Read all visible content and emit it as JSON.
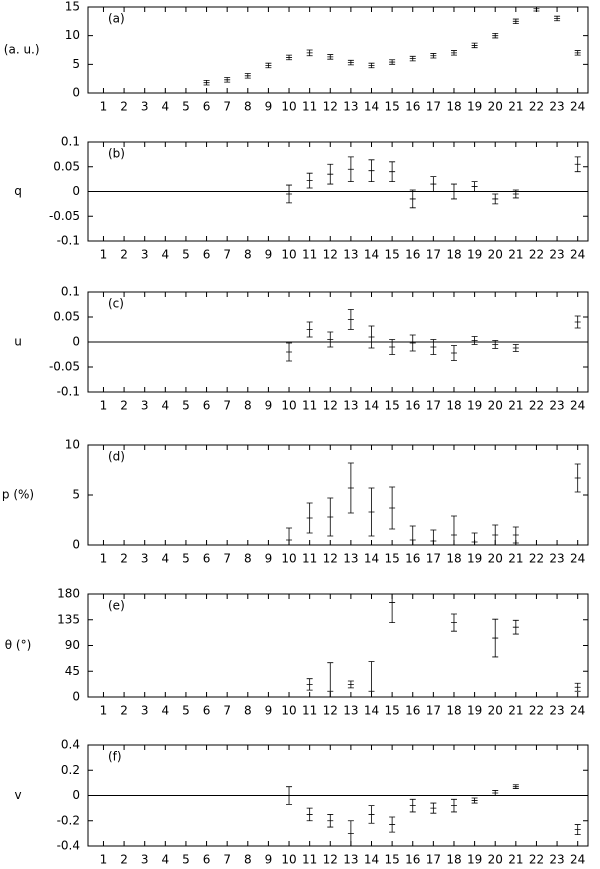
{
  "chart_data": [
    {
      "type": "errorbar",
      "y_label": "I (a. u.)",
      "annotation": "(a)",
      "x": [
        6,
        7,
        8,
        9,
        10,
        11,
        12,
        13,
        14,
        15,
        16,
        17,
        18,
        19,
        20,
        21,
        22,
        23,
        24
      ],
      "values": [
        1.8,
        2.3,
        3.0,
        4.8,
        6.2,
        7.0,
        6.3,
        5.3,
        4.8,
        5.4,
        6.0,
        6.5,
        7.0,
        8.3,
        10.0,
        12.5,
        14.7,
        13.0,
        7.0
      ],
      "errors": [
        0.4,
        0.4,
        0.4,
        0.4,
        0.4,
        0.5,
        0.4,
        0.4,
        0.4,
        0.4,
        0.4,
        0.4,
        0.4,
        0.4,
        0.4,
        0.4,
        0.4,
        0.4,
        0.4
      ],
      "xlim": [
        0.25,
        24.5
      ],
      "xticks": [
        1,
        2,
        3,
        4,
        5,
        6,
        7,
        8,
        9,
        10,
        11,
        12,
        13,
        14,
        15,
        16,
        17,
        18,
        19,
        20,
        21,
        22,
        23,
        24
      ],
      "ylim": [
        0,
        15
      ],
      "yticks": [
        0,
        5,
        10,
        15
      ],
      "zero_line": false,
      "color": "#000000"
    },
    {
      "type": "errorbar",
      "y_label": "q",
      "annotation": "(b)",
      "x": [
        10,
        11,
        12,
        13,
        14,
        15,
        16,
        17,
        18,
        19,
        20,
        21,
        24
      ],
      "values": [
        -0.005,
        0.022,
        0.035,
        0.045,
        0.042,
        0.04,
        -0.015,
        0.015,
        0.0,
        0.01,
        -0.015,
        -0.005,
        0.055
      ],
      "errors": [
        0.018,
        0.015,
        0.02,
        0.025,
        0.022,
        0.02,
        0.018,
        0.015,
        0.015,
        0.01,
        0.01,
        0.008,
        0.015
      ],
      "xlim": [
        0.25,
        24.5
      ],
      "xticks": [
        1,
        2,
        3,
        4,
        5,
        6,
        7,
        8,
        9,
        10,
        11,
        12,
        13,
        14,
        15,
        16,
        17,
        18,
        19,
        20,
        21,
        22,
        23,
        24
      ],
      "ylim": [
        -0.1,
        0.1
      ],
      "yticks": [
        -0.1,
        -0.05,
        0,
        0.05,
        0.1
      ],
      "zero_line": true,
      "color": "#000000"
    },
    {
      "type": "errorbar",
      "y_label": "u",
      "annotation": "(c)",
      "x": [
        10,
        11,
        12,
        13,
        14,
        15,
        16,
        17,
        18,
        19,
        20,
        21,
        24
      ],
      "values": [
        -0.02,
        0.025,
        0.005,
        0.045,
        0.01,
        -0.01,
        -0.002,
        -0.01,
        -0.022,
        0.003,
        -0.005,
        -0.012,
        0.04
      ],
      "errors": [
        0.018,
        0.015,
        0.015,
        0.02,
        0.022,
        0.015,
        0.016,
        0.015,
        0.015,
        0.008,
        0.008,
        0.007,
        0.012
      ],
      "xlim": [
        0.25,
        24.5
      ],
      "xticks": [
        1,
        2,
        3,
        4,
        5,
        6,
        7,
        8,
        9,
        10,
        11,
        12,
        13,
        14,
        15,
        16,
        17,
        18,
        19,
        20,
        21,
        22,
        23,
        24
      ],
      "ylim": [
        -0.1,
        0.1
      ],
      "yticks": [
        -0.1,
        -0.05,
        0,
        0.05,
        0.1
      ],
      "zero_line": true,
      "color": "#000000"
    },
    {
      "type": "errorbar",
      "y_label": "p (%)",
      "annotation": "(d)",
      "x": [
        10,
        11,
        12,
        13,
        14,
        15,
        16,
        17,
        18,
        19,
        20,
        21,
        24
      ],
      "values": [
        0.5,
        2.7,
        2.8,
        5.7,
        3.3,
        3.7,
        0.5,
        0.4,
        1.0,
        0.3,
        1.0,
        1.0,
        6.7
      ],
      "errors": [
        1.2,
        1.5,
        1.9,
        2.5,
        2.4,
        2.1,
        1.4,
        1.1,
        1.9,
        0.9,
        1.0,
        0.8,
        1.4
      ],
      "xlim": [
        0.25,
        24.5
      ],
      "xticks": [
        1,
        2,
        3,
        4,
        5,
        6,
        7,
        8,
        9,
        10,
        11,
        12,
        13,
        14,
        15,
        16,
        17,
        18,
        19,
        20,
        21,
        22,
        23,
        24
      ],
      "ylim": [
        0,
        10
      ],
      "yticks": [
        0,
        5,
        10
      ],
      "zero_line": false,
      "color": "#000000"
    },
    {
      "type": "errorbar",
      "y_label": "θ (°)",
      "annotation": "(e)",
      "x": [
        11,
        12,
        13,
        14,
        15,
        18,
        20,
        21,
        24
      ],
      "values": [
        22,
        10,
        22,
        10,
        165,
        130,
        103,
        122,
        17
      ],
      "errors": [
        10,
        50,
        6,
        52,
        35,
        15,
        33,
        12,
        7
      ],
      "xlim": [
        0.25,
        24.5
      ],
      "xticks": [
        1,
        2,
        3,
        4,
        5,
        6,
        7,
        8,
        9,
        10,
        11,
        12,
        13,
        14,
        15,
        16,
        17,
        18,
        19,
        20,
        21,
        22,
        23,
        24
      ],
      "ylim": [
        0,
        180
      ],
      "yticks": [
        0,
        45,
        90,
        135,
        180
      ],
      "zero_line": false,
      "color": "#000000"
    },
    {
      "type": "errorbar",
      "y_label": "v",
      "annotation": "(f)",
      "x": [
        10,
        11,
        12,
        13,
        14,
        15,
        16,
        17,
        18,
        19,
        20,
        21,
        24
      ],
      "values": [
        0.0,
        -0.15,
        -0.2,
        -0.3,
        -0.15,
        -0.23,
        -0.08,
        -0.1,
        -0.08,
        -0.04,
        0.02,
        0.07,
        -0.27
      ],
      "errors": [
        0.07,
        0.05,
        0.05,
        0.1,
        0.07,
        0.06,
        0.05,
        0.04,
        0.05,
        0.02,
        0.02,
        0.015,
        0.04
      ],
      "xlim": [
        0.25,
        24.5
      ],
      "xticks": [
        1,
        2,
        3,
        4,
        5,
        6,
        7,
        8,
        9,
        10,
        11,
        12,
        13,
        14,
        15,
        16,
        17,
        18,
        19,
        20,
        21,
        22,
        23,
        24
      ],
      "ylim": [
        -0.4,
        0.4
      ],
      "yticks": [
        -0.4,
        -0.2,
        0,
        0.2,
        0.4
      ],
      "zero_line": true,
      "color": "#000000"
    }
  ]
}
